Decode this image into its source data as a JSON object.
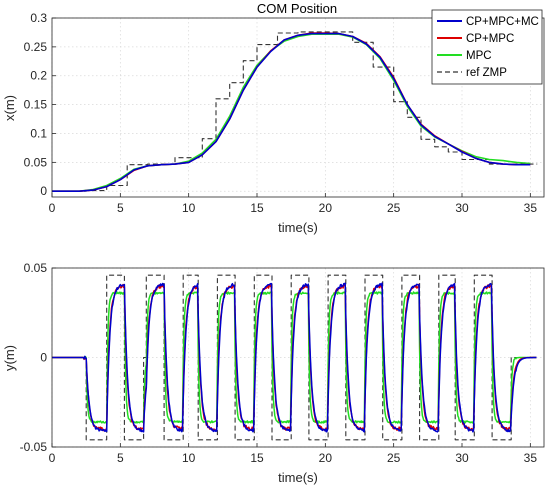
{
  "chart_data": [
    {
      "type": "line",
      "title": "COM Position",
      "xlabel": "time(s)",
      "ylabel": "x(m)",
      "xlim": [
        0,
        36
      ],
      "ylim": [
        -0.01,
        0.3
      ],
      "xticks": [
        0,
        5,
        10,
        15,
        20,
        25,
        30,
        35
      ],
      "yticks": [
        0,
        0.05,
        0.1,
        0.15,
        0.2,
        0.25,
        0.3
      ],
      "ytick_labels": [
        "0",
        "0.05",
        "0.1",
        "0.15",
        "0.2",
        "0.25",
        "0.3"
      ],
      "grid": true,
      "legend": {
        "position": "top-right",
        "entries": [
          "CP+MPC+MC",
          "CP+MPC",
          "MPC",
          "ref ZMP"
        ]
      },
      "series": [
        {
          "name": "CP+MPC+MC",
          "color": "#0000cc",
          "style": "solid",
          "x": [
            0,
            1,
            2,
            3,
            4,
            5,
            6,
            7,
            8,
            9,
            10,
            11,
            12,
            13,
            14,
            15,
            16,
            17,
            18,
            19,
            20,
            21,
            22,
            23,
            24,
            25,
            26,
            27,
            28,
            29,
            30,
            31,
            32,
            33,
            34,
            35
          ],
          "y": [
            0,
            0,
            0,
            0.002,
            0.008,
            0.02,
            0.037,
            0.044,
            0.046,
            0.047,
            0.05,
            0.063,
            0.086,
            0.125,
            0.175,
            0.215,
            0.242,
            0.262,
            0.27,
            0.273,
            0.273,
            0.273,
            0.268,
            0.255,
            0.232,
            0.195,
            0.15,
            0.115,
            0.095,
            0.082,
            0.068,
            0.057,
            0.05,
            0.047,
            0.046,
            0.046
          ]
        },
        {
          "name": "CP+MPC",
          "color": "#dd0000",
          "style": "solid",
          "x": [
            0,
            1,
            2,
            3,
            4,
            5,
            6,
            7,
            8,
            9,
            10,
            11,
            12,
            13,
            14,
            15,
            16,
            17,
            18,
            19,
            20,
            21,
            22,
            23,
            24,
            25,
            26,
            27,
            28,
            29,
            30,
            31,
            32,
            33,
            34,
            35
          ],
          "y": [
            0,
            0,
            0,
            0.002,
            0.008,
            0.02,
            0.036,
            0.044,
            0.046,
            0.047,
            0.05,
            0.063,
            0.086,
            0.125,
            0.175,
            0.215,
            0.243,
            0.262,
            0.27,
            0.274,
            0.274,
            0.273,
            0.268,
            0.256,
            0.233,
            0.197,
            0.15,
            0.116,
            0.096,
            0.082,
            0.069,
            0.057,
            0.05,
            0.047,
            0.046,
            0.046
          ]
        },
        {
          "name": "MPC",
          "color": "#22dd22",
          "style": "solid",
          "x": [
            0,
            1,
            2,
            3,
            4,
            5,
            6,
            7,
            8,
            9,
            10,
            11,
            12,
            13,
            14,
            15,
            16,
            17,
            18,
            19,
            20,
            21,
            22,
            23,
            24,
            25,
            26,
            27,
            28,
            29,
            30,
            31,
            32,
            33,
            34,
            35
          ],
          "y": [
            0,
            0,
            0,
            0.003,
            0.01,
            0.022,
            0.038,
            0.044,
            0.046,
            0.047,
            0.052,
            0.066,
            0.09,
            0.13,
            0.18,
            0.218,
            0.243,
            0.26,
            0.268,
            0.272,
            0.272,
            0.272,
            0.267,
            0.254,
            0.23,
            0.192,
            0.147,
            0.113,
            0.094,
            0.082,
            0.07,
            0.06,
            0.055,
            0.053,
            0.05,
            0.048
          ]
        },
        {
          "name": "ref ZMP",
          "color": "#333333",
          "style": "dashed",
          "x": [
            0,
            2.5,
            2.5,
            4,
            4,
            5.5,
            5.5,
            7,
            7,
            9,
            9,
            11,
            11,
            12,
            12,
            13,
            13,
            14,
            14,
            15,
            15,
            16.5,
            16.5,
            18,
            18,
            22,
            22,
            23.5,
            23.5,
            25,
            25,
            26,
            26,
            27,
            27,
            28,
            28,
            29,
            29,
            30,
            30,
            32,
            32,
            35.5
          ],
          "y": [
            0,
            0,
            0.001,
            0.001,
            0.01,
            0.01,
            0.046,
            0.046,
            0.047,
            0.047,
            0.058,
            0.058,
            0.091,
            0.091,
            0.16,
            0.16,
            0.188,
            0.188,
            0.226,
            0.226,
            0.254,
            0.254,
            0.274,
            0.274,
            0.276,
            0.276,
            0.258,
            0.258,
            0.215,
            0.215,
            0.155,
            0.155,
            0.128,
            0.128,
            0.09,
            0.09,
            0.077,
            0.077,
            0.068,
            0.068,
            0.055,
            0.055,
            0.047,
            0.047
          ]
        }
      ]
    },
    {
      "type": "line",
      "title": "",
      "xlabel": "time(s)",
      "ylabel": "y(m)",
      "xlim": [
        0,
        36
      ],
      "ylim": [
        -0.05,
        0.05
      ],
      "xticks": [
        0,
        5,
        10,
        15,
        20,
        25,
        30,
        35
      ],
      "yticks": [
        -0.05,
        0,
        0.05
      ],
      "ytick_labels": [
        "-0.05",
        "0",
        "0.05"
      ],
      "grid": true,
      "steps": {
        "first_pulse_low": [
          2.5,
          4.0
        ],
        "pulse_high_start": [
          4.0,
          6.9,
          9.4,
          12.1,
          14.8,
          17.5,
          20.2,
          22.9,
          25.6,
          28.2,
          30.9
        ],
        "pulse_high_width": 1.3,
        "pulse_low_width": 1.4,
        "ref_high": 0.046,
        "ref_low": -0.046,
        "end_time": 35.5
      },
      "series": [
        {
          "name": "CP+MPC+MC",
          "color": "#0000cc",
          "style": "solid",
          "amp": 0.041,
          "lag": 0.55,
          "noise": 0.0015
        },
        {
          "name": "CP+MPC",
          "color": "#dd0000",
          "style": "solid",
          "amp": 0.04,
          "lag": 0.5,
          "noise": 0.002
        },
        {
          "name": "MPC",
          "color": "#22dd22",
          "style": "solid",
          "amp": 0.036,
          "lag": 0.25,
          "noise": 0.0012
        },
        {
          "name": "ref ZMP",
          "color": "#333333",
          "style": "dashed",
          "amp": 0.046,
          "lag": 0,
          "noise": 0
        }
      ]
    }
  ]
}
